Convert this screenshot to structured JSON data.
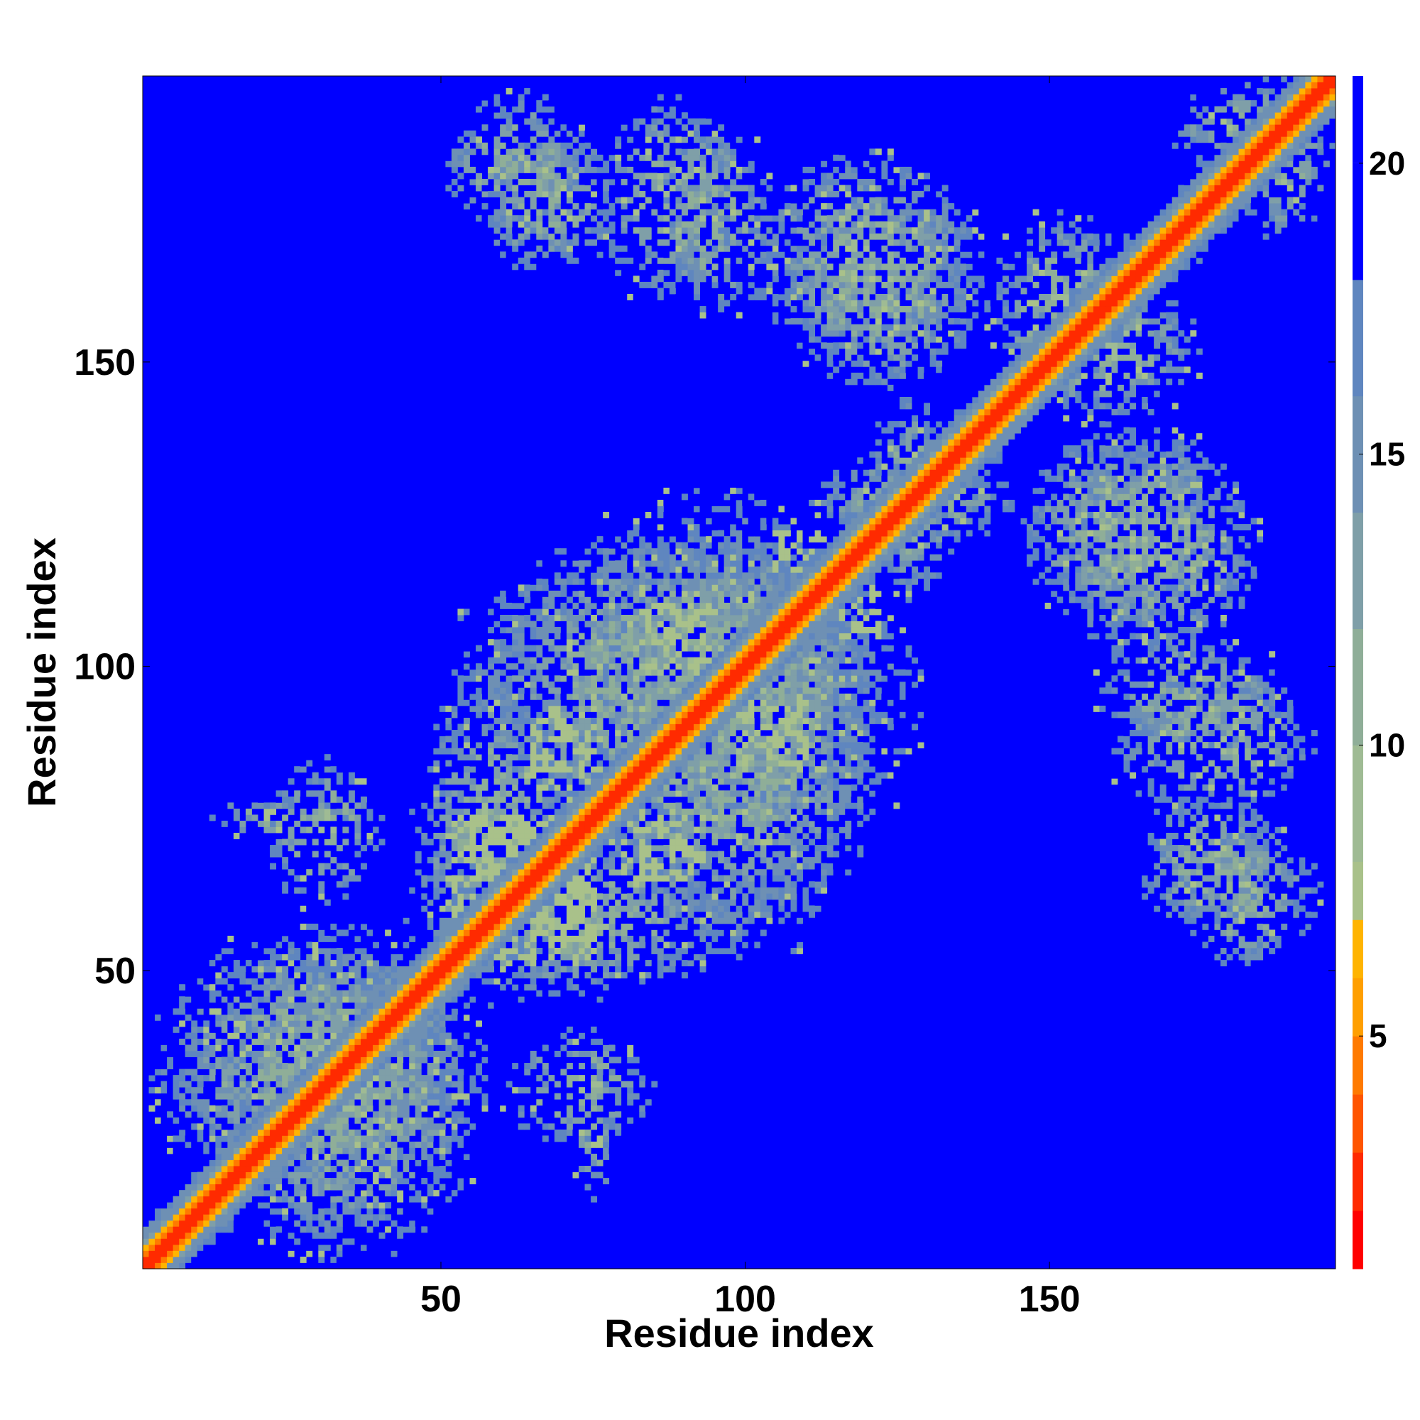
{
  "chart_data": {
    "type": "heatmap",
    "title": "",
    "xlabel": "Residue index",
    "ylabel": "Residue index",
    "xlim": [
      1,
      197
    ],
    "ylim": [
      1,
      197
    ],
    "n_residues": 197,
    "x_ticks": [
      50,
      100,
      150
    ],
    "y_ticks": [
      50,
      100,
      150
    ],
    "colorbar": {
      "ticks": [
        5,
        10,
        15,
        20
      ],
      "range": [
        1,
        21.5
      ],
      "colors": [
        "#ff0000",
        "#ff2a00",
        "#ff5500",
        "#ff7a00",
        "#ff9f00",
        "#ffb400",
        "#a9c18a",
        "#9fbb94",
        "#8fae98",
        "#7f9fa8",
        "#6e90b4",
        "#5f86bf",
        "#0000ff"
      ],
      "levels": [
        2,
        3,
        4,
        5,
        6,
        7,
        8,
        10,
        12,
        14,
        16,
        18,
        20
      ]
    },
    "background_value": 21,
    "contact_regions": [
      {
        "x": [
          1,
          58
        ],
        "y": [
          10,
          57
        ],
        "level": 0.6
      },
      {
        "x": [
          10,
          37
        ],
        "y": [
          72,
          78
        ],
        "level": 0.4
      },
      {
        "x": [
          45,
          73
        ],
        "y": [
          44,
          100
        ],
        "level": 0.55
      },
      {
        "x": [
          60,
          85
        ],
        "y": [
          20,
          40
        ],
        "level": 0.4
      },
      {
        "x": [
          68,
          125
        ],
        "y": [
          50,
          130
        ],
        "level": 0.6
      },
      {
        "x": [
          110,
          145
        ],
        "y": [
          120,
          135
        ],
        "level": 0.5
      },
      {
        "x": [
          50,
          75
        ],
        "y": [
          170,
          195
        ],
        "level": 0.45
      },
      {
        "x": [
          75,
          100
        ],
        "y": [
          160,
          195
        ],
        "level": 0.45
      },
      {
        "x": [
          100,
          140
        ],
        "y": [
          150,
          185
        ],
        "level": 0.5
      },
      {
        "x": [
          140,
          165
        ],
        "y": [
          145,
          175
        ],
        "level": 0.45
      },
      {
        "x": [
          170,
          197
        ],
        "y": [
          180,
          197
        ],
        "level": 0.45
      },
      {
        "x": [
          145,
          180
        ],
        "y": [
          105,
          140
        ],
        "level": 0.5
      },
      {
        "x": [
          158,
          190
        ],
        "y": [
          85,
          105
        ],
        "level": 0.45
      },
      {
        "x": [
          165,
          190
        ],
        "y": [
          55,
          80
        ],
        "level": 0.5
      }
    ],
    "close_pairs": [
      {
        "x": [
          52,
          74
        ],
        "y": [
          55,
          75
        ],
        "value": 7
      },
      {
        "x": [
          80,
          93
        ],
        "y": [
          65,
          76
        ],
        "value": 7
      },
      {
        "x": [
          105,
          112
        ],
        "y": [
          115,
          122
        ],
        "value": 7
      },
      {
        "x": [
          84,
          94
        ],
        "y": [
          100,
          110
        ],
        "value": 7
      }
    ]
  }
}
